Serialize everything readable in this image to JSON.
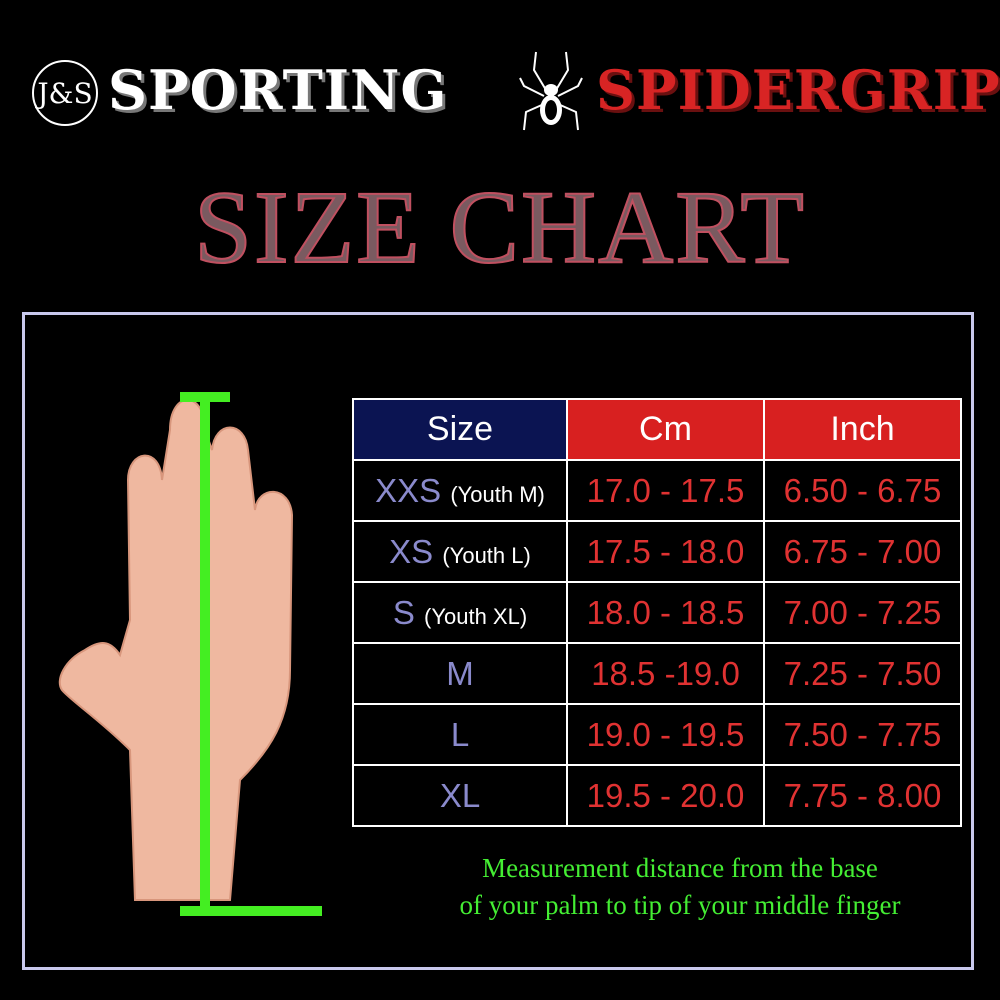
{
  "header": {
    "logo_monogram": "J&S",
    "brand_left": "SPORTING",
    "brand_right": "SPIDERGRIP",
    "title": "SIZE CHART"
  },
  "colors": {
    "header_size": "#0b1452",
    "header_units": "#d82020",
    "size_text": "#8a8acc",
    "value_text": "#e03232",
    "note_text": "#44ee33",
    "measure_bar": "#44ee22"
  },
  "table": {
    "headers": [
      "Size",
      "Cm",
      "Inch"
    ],
    "rows": [
      {
        "size": "XXS",
        "youth": "(Youth M)",
        "cm": "17.0 - 17.5",
        "inch": "6.50 - 6.75"
      },
      {
        "size": "XS",
        "youth": "(Youth L)",
        "cm": "17.5 - 18.0",
        "inch": "6.75 - 7.00"
      },
      {
        "size": "S",
        "youth": "(Youth XL)",
        "cm": "18.0 - 18.5",
        "inch": "7.00 - 7.25"
      },
      {
        "size": "M",
        "youth": "",
        "cm": "18.5 -19.0",
        "inch": "7.25 - 7.50"
      },
      {
        "size": "L",
        "youth": "",
        "cm": "19.0 - 19.5",
        "inch": "7.50 - 7.75"
      },
      {
        "size": "XL",
        "youth": "",
        "cm": "19.5 - 20.0",
        "inch": "7.75 - 8.00"
      }
    ]
  },
  "note": {
    "line1": "Measurement distance from the base",
    "line2": "of your palm to  tip of your middle finger"
  }
}
